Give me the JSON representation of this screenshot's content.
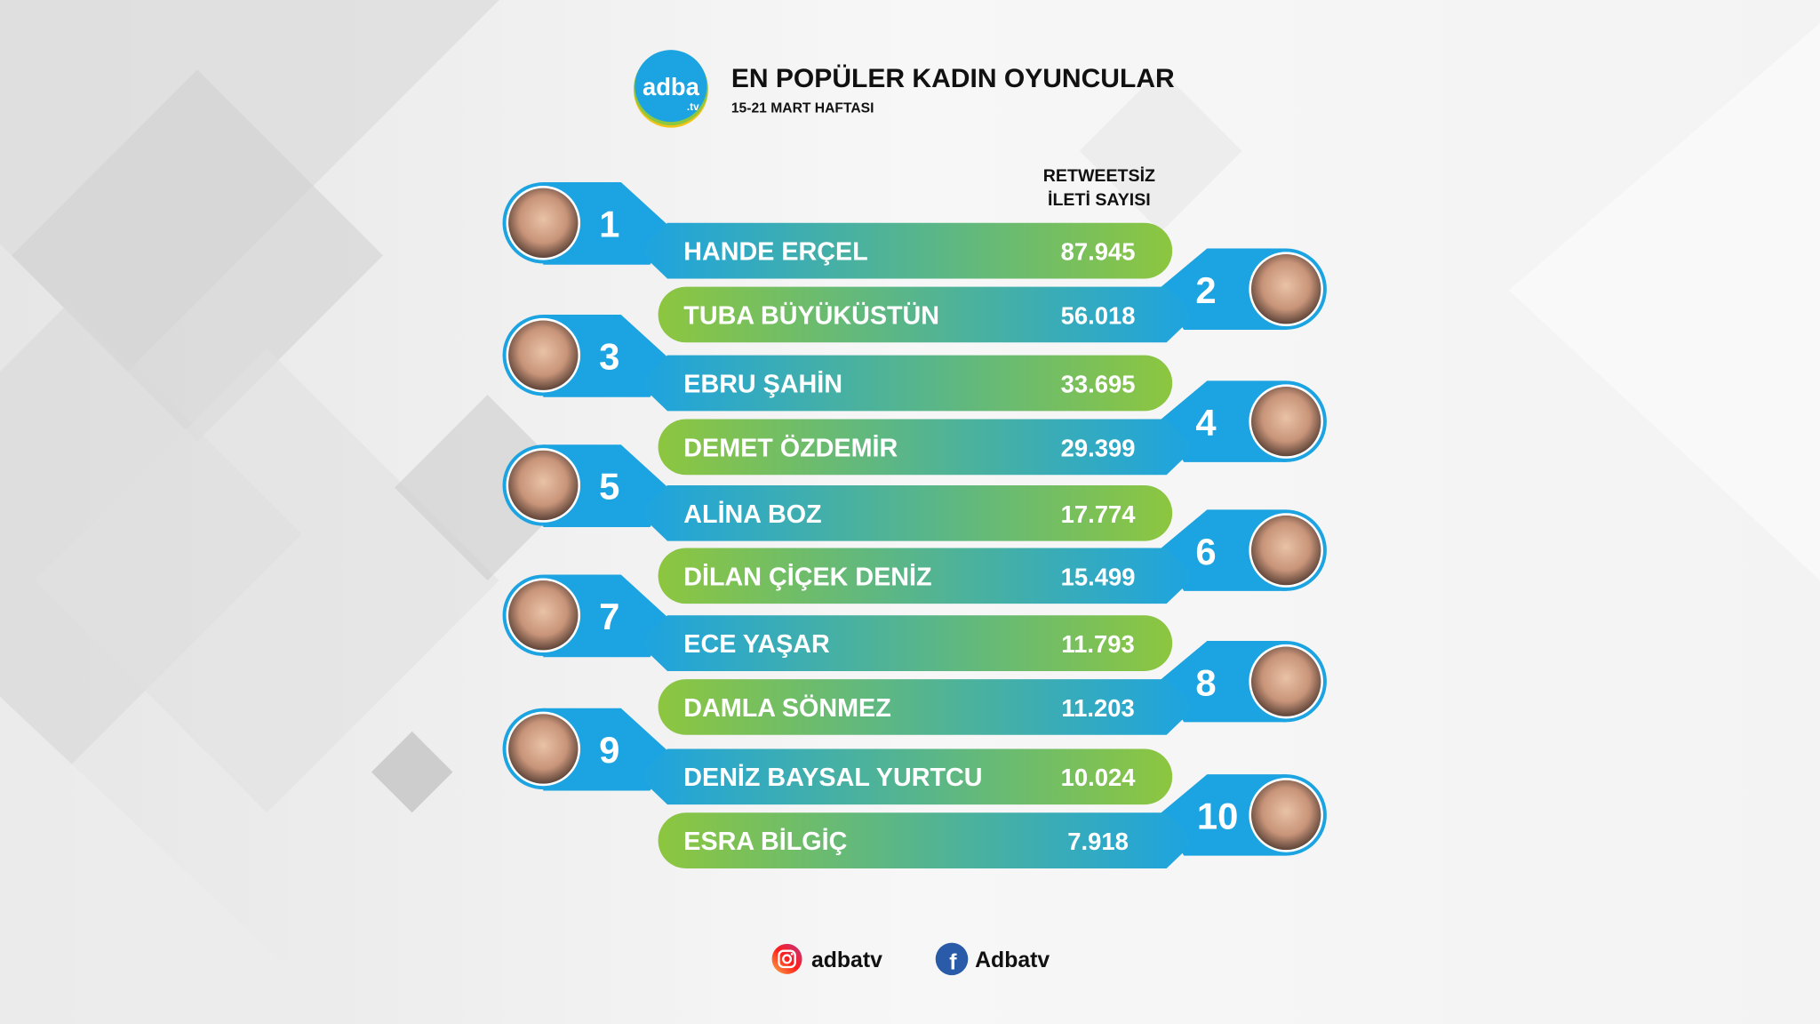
{
  "logo": {
    "text": "adba",
    "suffix": ".tv"
  },
  "header": {
    "title": "EN POPÜLER KADIN OYUNCULAR",
    "subtitle": "15-21 MART HAFTASI",
    "column_label_line1": "RETWEETSİZ",
    "column_label_line2": "İLETİ SAYISI"
  },
  "colors": {
    "blue": "#1ca3e1",
    "green": "#8dc63f",
    "text": "#111111"
  },
  "rows": [
    {
      "rank": "1",
      "name": "HANDE ERÇEL",
      "value": "87.945"
    },
    {
      "rank": "2",
      "name": "TUBA BÜYÜKÜSTÜN",
      "value": "56.018"
    },
    {
      "rank": "3",
      "name": "EBRU ŞAHİN",
      "value": "33.695"
    },
    {
      "rank": "4",
      "name": "DEMET ÖZDEMİR",
      "value": "29.399"
    },
    {
      "rank": "5",
      "name": "ALİNA BOZ",
      "value": "17.774"
    },
    {
      "rank": "6",
      "name": "DİLAN ÇİÇEK DENİZ",
      "value": "15.499"
    },
    {
      "rank": "7",
      "name": "ECE YAŞAR",
      "value": "11.793"
    },
    {
      "rank": "8",
      "name": "DAMLA SÖNMEZ",
      "value": "11.203"
    },
    {
      "rank": "9",
      "name": "DENİZ BAYSAL YURTCU",
      "value": "10.024"
    },
    {
      "rank": "10",
      "name": "ESRA BİLGİÇ",
      "value": "7.918"
    }
  ],
  "footer": {
    "instagram": "adbatv",
    "facebook": "Adbatv"
  }
}
